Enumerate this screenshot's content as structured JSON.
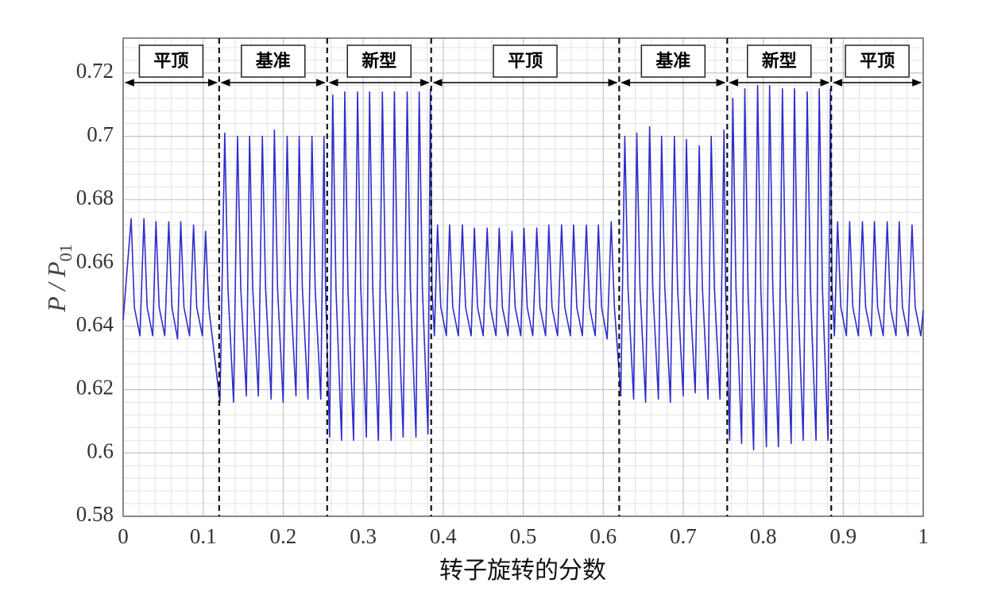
{
  "chart_data": {
    "type": "line",
    "xlabel": "转子旋转的分数",
    "ylabel": "P / P",
    "ylabel_subscript": "01",
    "xlim": [
      0,
      1
    ],
    "ylim": [
      0.58,
      0.731
    ],
    "xticks": [
      0,
      0.1,
      0.2,
      0.3,
      0.4,
      0.5,
      0.6,
      0.7,
      0.8,
      0.9,
      1
    ],
    "yticks": [
      0.58,
      0.6,
      0.62,
      0.64,
      0.66,
      0.68,
      0.7,
      0.72
    ],
    "grid": true,
    "minor_per_major": 5,
    "color": "#2d2dcc",
    "boundaries": [
      0.12,
      0.255,
      0.385,
      0.62,
      0.755,
      0.885
    ],
    "regions": [
      "平顶",
      "基准",
      "新型",
      "平顶",
      "基准",
      "新型",
      "平顶"
    ],
    "x": [
      0,
      0.01,
      0.014,
      0.021,
      0.026,
      0.03,
      0.037,
      0.041,
      0.045,
      0.052,
      0.057,
      0.061,
      0.068,
      0.072,
      0.076,
      0.083,
      0.088,
      0.092,
      0.099,
      0.103,
      0.107,
      0.121,
      0.127,
      0.131,
      0.138,
      0.143,
      0.147,
      0.154,
      0.158,
      0.162,
      0.169,
      0.174,
      0.178,
      0.185,
      0.189,
      0.193,
      0.2,
      0.205,
      0.209,
      0.216,
      0.22,
      0.224,
      0.231,
      0.236,
      0.24,
      0.247,
      0.251,
      0.253,
      0.258,
      0.262,
      0.266,
      0.273,
      0.277,
      0.281,
      0.288,
      0.293,
      0.297,
      0.304,
      0.308,
      0.312,
      0.319,
      0.324,
      0.328,
      0.335,
      0.339,
      0.343,
      0.35,
      0.355,
      0.359,
      0.366,
      0.37,
      0.374,
      0.381,
      0.384,
      0.386,
      0.389,
      0.393,
      0.397,
      0.404,
      0.408,
      0.412,
      0.419,
      0.424,
      0.428,
      0.435,
      0.439,
      0.443,
      0.45,
      0.455,
      0.459,
      0.466,
      0.47,
      0.474,
      0.481,
      0.486,
      0.49,
      0.497,
      0.501,
      0.505,
      0.512,
      0.517,
      0.521,
      0.528,
      0.532,
      0.536,
      0.543,
      0.548,
      0.552,
      0.559,
      0.563,
      0.567,
      0.574,
      0.579,
      0.583,
      0.59,
      0.594,
      0.598,
      0.605,
      0.61,
      0.614,
      0.622,
      0.627,
      0.631,
      0.638,
      0.642,
      0.646,
      0.653,
      0.658,
      0.662,
      0.669,
      0.673,
      0.677,
      0.684,
      0.689,
      0.693,
      0.7,
      0.704,
      0.708,
      0.715,
      0.72,
      0.724,
      0.731,
      0.735,
      0.739,
      0.746,
      0.751,
      0.753,
      0.758,
      0.762,
      0.766,
      0.773,
      0.777,
      0.781,
      0.788,
      0.793,
      0.797,
      0.804,
      0.808,
      0.812,
      0.819,
      0.824,
      0.828,
      0.835,
      0.839,
      0.843,
      0.85,
      0.855,
      0.859,
      0.866,
      0.87,
      0.874,
      0.881,
      0.884,
      0.886,
      0.889,
      0.893,
      0.897,
      0.904,
      0.908,
      0.912,
      0.919,
      0.924,
      0.928,
      0.935,
      0.939,
      0.943,
      0.95,
      0.955,
      0.959,
      0.966,
      0.97,
      0.974,
      0.981,
      0.986,
      0.99,
      0.997,
      1
    ],
    "values": [
      0.642,
      0.674,
      0.646,
      0.637,
      0.674,
      0.646,
      0.637,
      0.673,
      0.646,
      0.637,
      0.673,
      0.646,
      0.636,
      0.673,
      0.646,
      0.637,
      0.672,
      0.646,
      0.637,
      0.67,
      0.646,
      0.616,
      0.701,
      0.652,
      0.616,
      0.7,
      0.652,
      0.618,
      0.7,
      0.652,
      0.618,
      0.7,
      0.652,
      0.617,
      0.702,
      0.652,
      0.616,
      0.7,
      0.652,
      0.618,
      0.7,
      0.652,
      0.617,
      0.7,
      0.652,
      0.617,
      0.7,
      0.652,
      0.605,
      0.713,
      0.652,
      0.604,
      0.714,
      0.652,
      0.604,
      0.714,
      0.652,
      0.605,
      0.714,
      0.652,
      0.604,
      0.714,
      0.652,
      0.604,
      0.714,
      0.652,
      0.605,
      0.714,
      0.652,
      0.605,
      0.714,
      0.652,
      0.606,
      0.715,
      0.652,
      0.637,
      0.672,
      0.646,
      0.637,
      0.672,
      0.646,
      0.637,
      0.672,
      0.646,
      0.637,
      0.671,
      0.646,
      0.637,
      0.671,
      0.646,
      0.637,
      0.671,
      0.646,
      0.637,
      0.67,
      0.646,
      0.637,
      0.671,
      0.646,
      0.637,
      0.671,
      0.646,
      0.637,
      0.672,
      0.646,
      0.637,
      0.672,
      0.646,
      0.637,
      0.672,
      0.646,
      0.637,
      0.672,
      0.646,
      0.637,
      0.672,
      0.646,
      0.636,
      0.673,
      0.646,
      0.618,
      0.7,
      0.652,
      0.617,
      0.701,
      0.652,
      0.616,
      0.703,
      0.652,
      0.617,
      0.7,
      0.652,
      0.616,
      0.7,
      0.652,
      0.618,
      0.699,
      0.652,
      0.619,
      0.697,
      0.652,
      0.617,
      0.7,
      0.652,
      0.617,
      0.702,
      0.652,
      0.604,
      0.712,
      0.652,
      0.603,
      0.715,
      0.652,
      0.601,
      0.716,
      0.652,
      0.602,
      0.716,
      0.652,
      0.602,
      0.715,
      0.652,
      0.603,
      0.715,
      0.652,
      0.604,
      0.714,
      0.652,
      0.604,
      0.715,
      0.652,
      0.604,
      0.715,
      0.652,
      0.637,
      0.673,
      0.646,
      0.637,
      0.673,
      0.646,
      0.637,
      0.673,
      0.646,
      0.637,
      0.673,
      0.646,
      0.637,
      0.673,
      0.646,
      0.637,
      0.673,
      0.646,
      0.637,
      0.672,
      0.646,
      0.637,
      0.645
    ]
  }
}
